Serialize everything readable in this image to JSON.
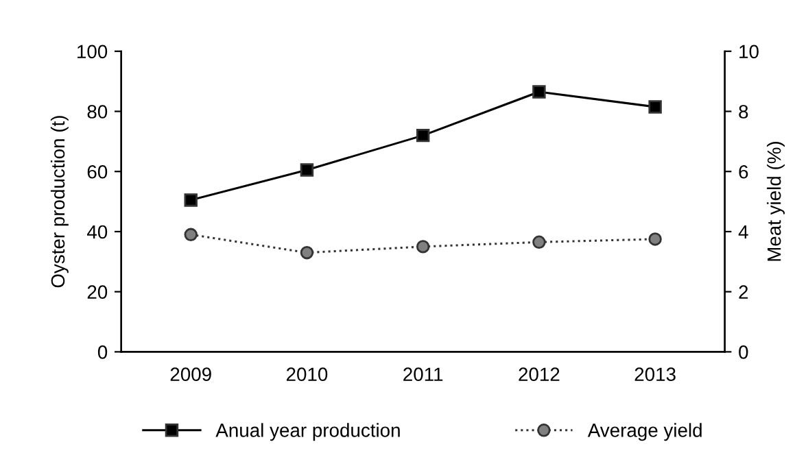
{
  "chart_data": {
    "type": "line",
    "categories": [
      "2009",
      "2010",
      "2011",
      "2012",
      "2013"
    ],
    "ylabel": "Oyster production (t)",
    "y2label": "Meat yield (%)",
    "ylim": [
      0,
      100
    ],
    "yticks": [
      0,
      20,
      40,
      60,
      80,
      100
    ],
    "y2lim": [
      0,
      10
    ],
    "y2ticks": [
      0,
      2,
      4,
      6,
      8,
      10
    ],
    "series": [
      {
        "name": "Anual year production",
        "color": "#000000",
        "marker": "square",
        "line_style": "solid",
        "values": [
          50.5,
          60.5,
          72,
          86.5,
          81.5
        ]
      },
      {
        "name": "Average yield",
        "color": "#808080",
        "marker": "circle",
        "line_style": "dotted",
        "axis": "y2",
        "values": [
          3.9,
          3.3,
          3.5,
          3.65,
          3.75
        ]
      }
    ],
    "grid": false,
    "legend": "bottom"
  }
}
